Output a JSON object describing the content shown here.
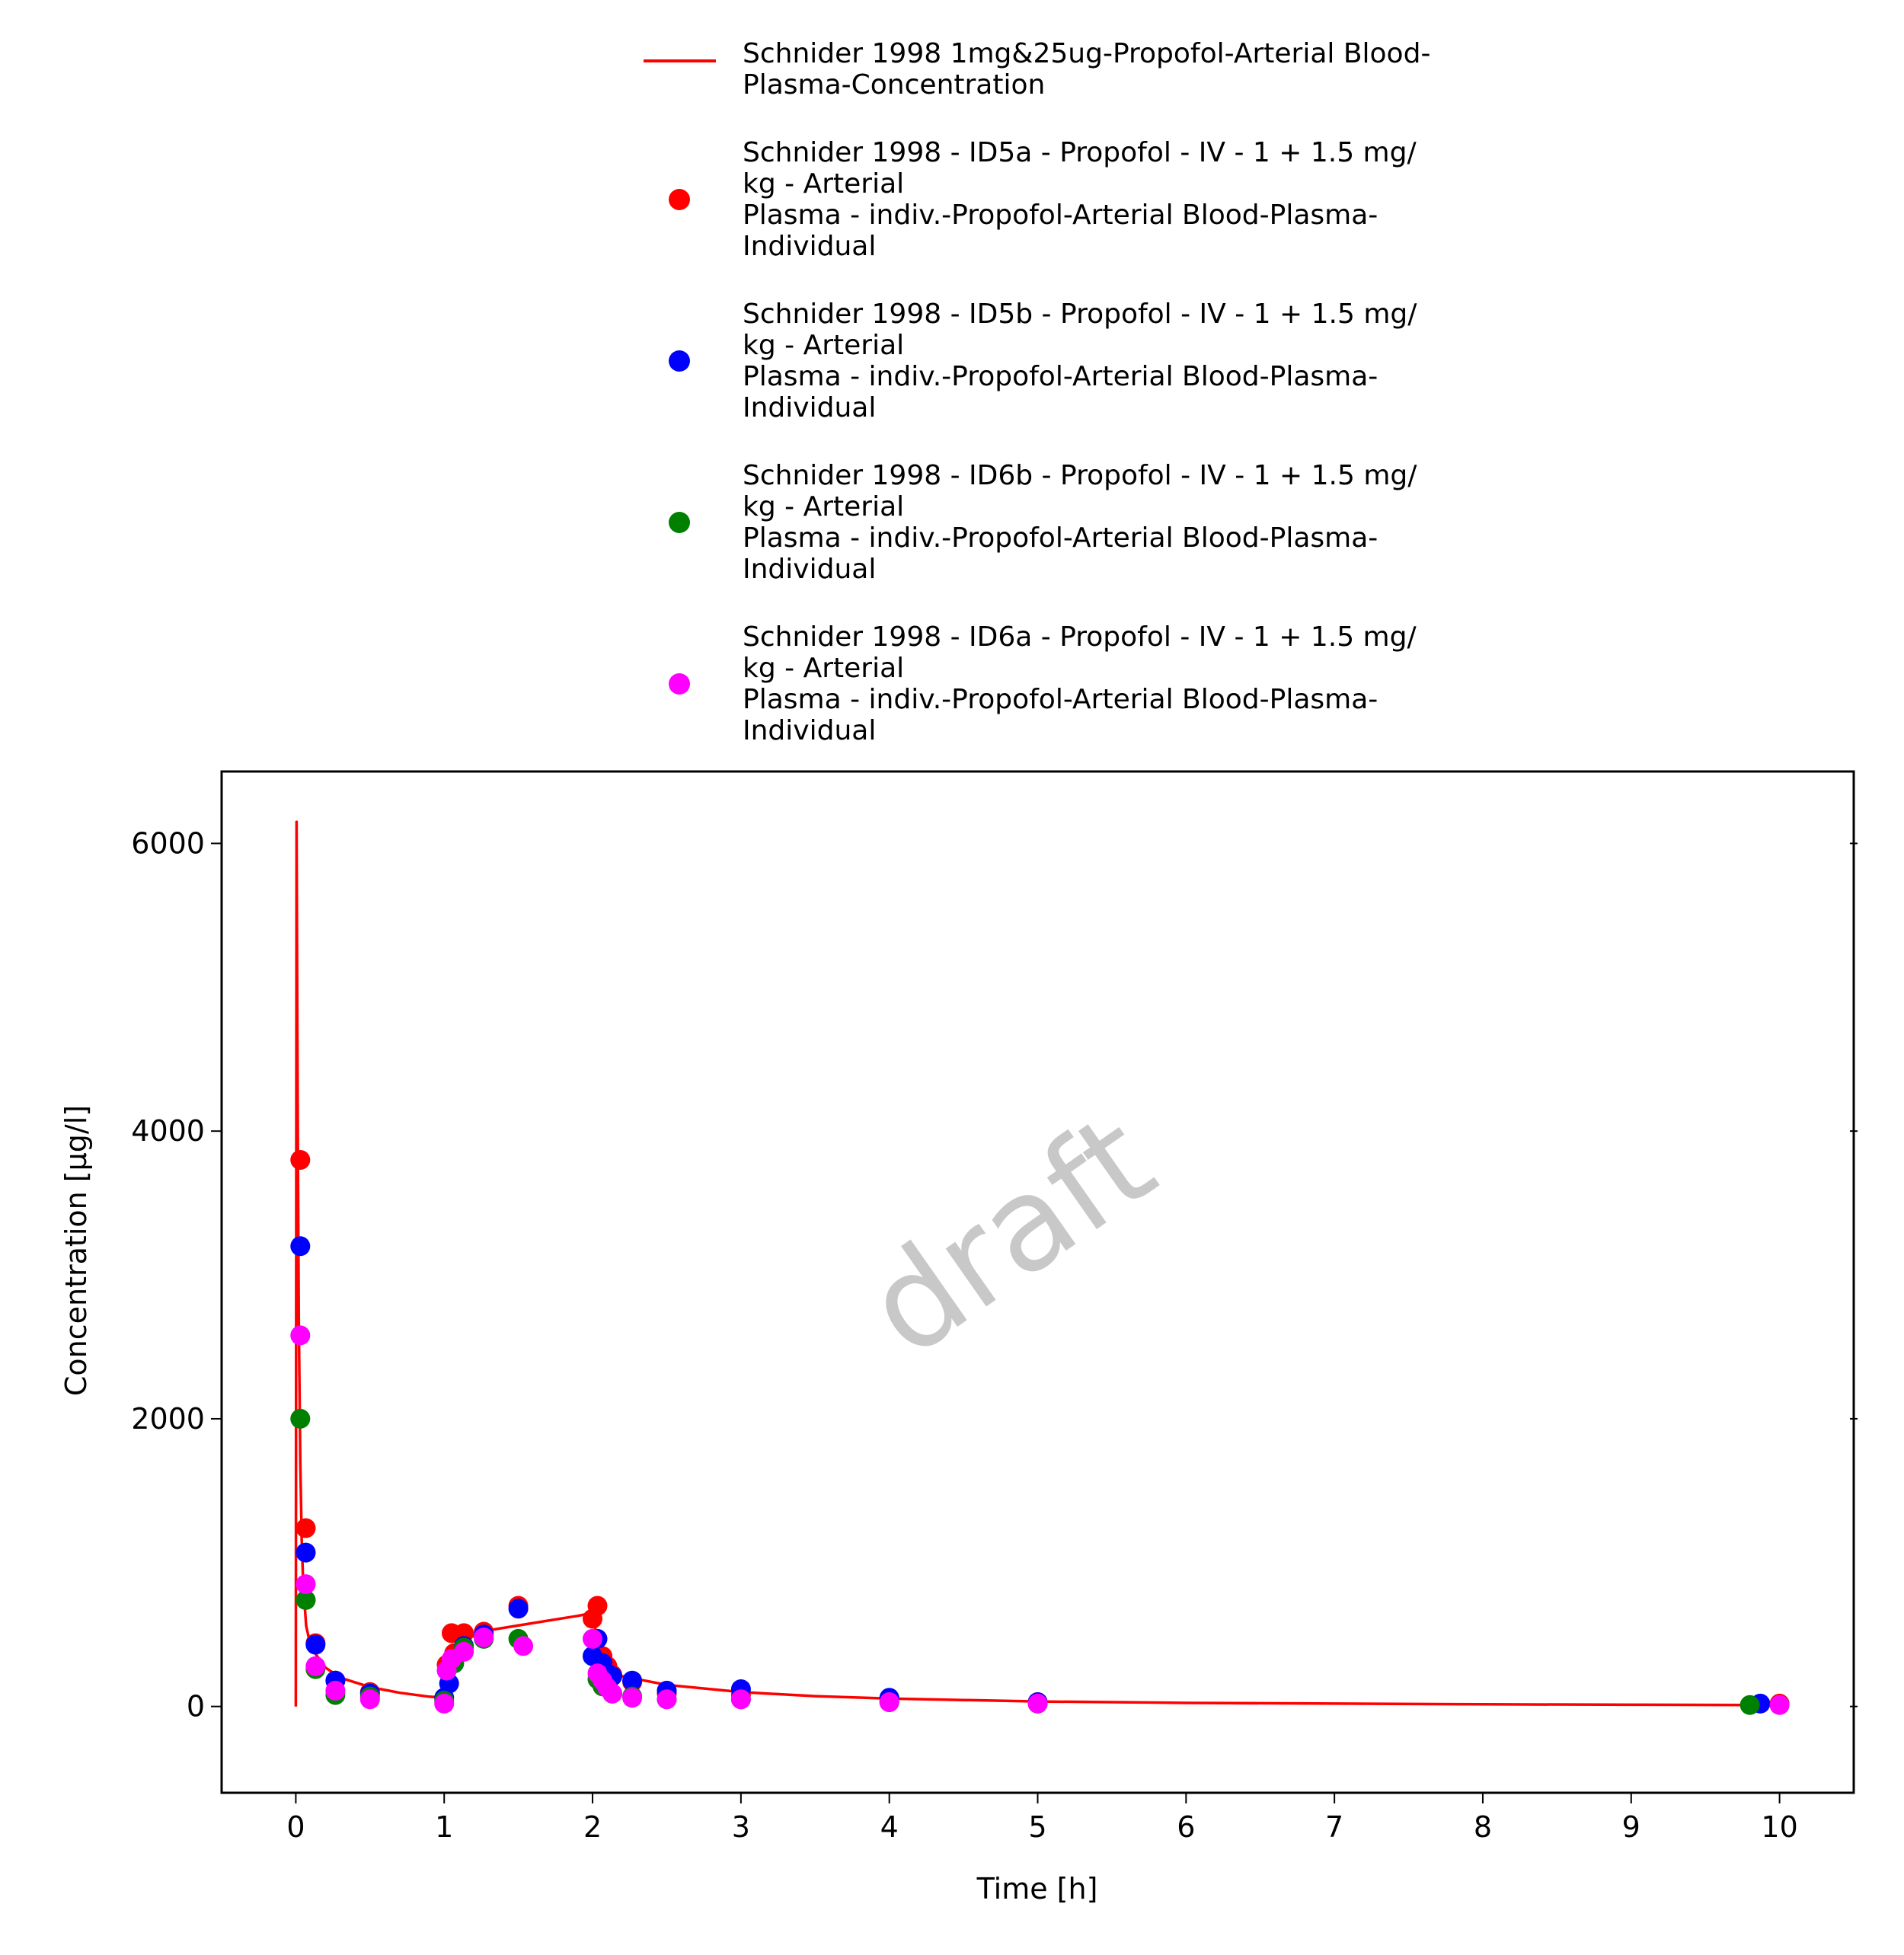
{
  "chart_data": {
    "type": "scatter",
    "title": "",
    "xlabel": "Time [h]",
    "ylabel": "Concentration [µg/l]",
    "xlim": [
      -0.5,
      10.5
    ],
    "ylim": [
      -600,
      6500
    ],
    "xticks": [
      0,
      1,
      2,
      3,
      4,
      5,
      6,
      7,
      8,
      9,
      10
    ],
    "yticks": [
      0,
      2000,
      4000,
      6000
    ],
    "grid": false,
    "legend_position": "top",
    "watermark": "draft",
    "series": [
      {
        "name": "Schnider 1998 1mg&25ug-Propofol-Arterial Blood-\nPlasma-Concentration",
        "kind": "line",
        "color": "#ff0000",
        "x": [
          0,
          0.005,
          0.01,
          0.015,
          0.02,
          0.03,
          0.04,
          0.05,
          0.07,
          0.1,
          0.13,
          0.2,
          0.3,
          0.5,
          0.7,
          0.9,
          1.0,
          1.1,
          1.3,
          1.6,
          1.9,
          2.0,
          2.05,
          2.1,
          2.2,
          2.5,
          3.0,
          3.5,
          4.0,
          5.0,
          6.0,
          7.0,
          8.0,
          9.0,
          10.0
        ],
        "y": [
          0,
          6150,
          4700,
          3700,
          2700,
          1700,
          1150,
          850,
          560,
          420,
          370,
          270,
          200,
          135,
          95,
          68,
          60,
          450,
          530,
          580,
          630,
          650,
          350,
          270,
          210,
          150,
          100,
          72,
          55,
          35,
          25,
          20,
          15,
          12,
          10
        ]
      },
      {
        "name": "Schnider 1998 - ID5a - Propofol - IV - 1 + 1.5 mg/\nkg - Arterial\nPlasma - indiv.-Propofol-Arterial Blood-Plasma-\nIndividual",
        "kind": "points",
        "color": "#ff0000",
        "x": [
          0.03,
          0.067,
          0.133,
          0.267,
          0.5,
          1.0,
          1.017,
          1.05,
          1.067,
          1.133,
          1.267,
          1.5,
          2.0,
          2.033,
          2.067,
          2.1,
          2.133,
          2.267,
          2.5,
          3.0,
          4.0,
          5.0,
          10.0
        ],
        "y": [
          3800,
          1240,
          440,
          180,
          100,
          60,
          290,
          510,
          370,
          510,
          520,
          700,
          610,
          700,
          350,
          280,
          220,
          170,
          90,
          80,
          50,
          30,
          20
        ]
      },
      {
        "name": "Schnider 1998 - ID5b - Propofol - IV - 1 + 1.5 mg/\nkg - Arterial\nPlasma - indiv.-Propofol-Arterial Blood-Plasma-\nIndividual",
        "kind": "points",
        "color": "#0000ff",
        "x": [
          0.03,
          0.067,
          0.133,
          0.267,
          0.5,
          1.0,
          1.033,
          1.067,
          1.133,
          1.267,
          1.5,
          2.0,
          2.033,
          2.067,
          2.1,
          2.133,
          2.267,
          2.5,
          3.0,
          4.0,
          5.0,
          9.87
        ],
        "y": [
          3200,
          1070,
          430,
          180,
          90,
          60,
          160,
          300,
          420,
          500,
          680,
          350,
          470,
          300,
          230,
          210,
          180,
          110,
          120,
          60,
          30,
          20
        ]
      },
      {
        "name": "Schnider 1998 - ID6b - Propofol - IV - 1 + 1.5 mg/\nkg - Arterial\nPlasma - indiv.-Propofol-Arterial Blood-Plasma-\nIndividual",
        "kind": "points",
        "color": "#008000",
        "x": [
          0.03,
          0.067,
          0.133,
          0.267,
          0.5,
          1.0,
          1.067,
          1.133,
          1.267,
          1.5,
          2.033,
          2.067,
          2.133,
          2.267,
          2.5,
          3.0,
          4.0,
          5.0,
          9.8
        ],
        "y": [
          2000,
          740,
          260,
          80,
          70,
          40,
          300,
          410,
          470,
          470,
          190,
          140,
          90,
          70,
          50,
          50,
          30,
          20,
          10
        ]
      },
      {
        "name": "Schnider 1998 - ID6a - Propofol - IV - 1 + 1.5 mg/\nkg - Arterial\nPlasma - indiv.-Propofol-Arterial Blood-Plasma-\nIndividual",
        "kind": "points",
        "color": "#ff00ff",
        "x": [
          0.03,
          0.067,
          0.133,
          0.267,
          0.5,
          1.0,
          1.017,
          1.05,
          1.133,
          1.267,
          1.533,
          2.0,
          2.033,
          2.067,
          2.1,
          2.133,
          2.267,
          2.5,
          3.0,
          4.0,
          5.0,
          10.0
        ],
        "y": [
          2580,
          850,
          280,
          110,
          50,
          20,
          250,
          330,
          380,
          480,
          420,
          470,
          230,
          180,
          130,
          90,
          60,
          50,
          50,
          30,
          20,
          10
        ]
      }
    ]
  }
}
